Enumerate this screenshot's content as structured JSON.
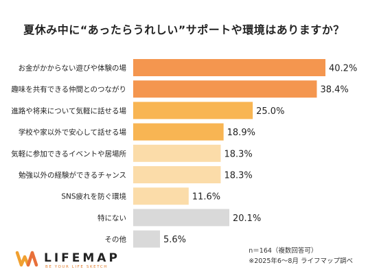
{
  "chart_data": {
    "type": "bar",
    "orientation": "horizontal",
    "title": "夏休み中に“あったらうれしい”サポートや環境はありますか？",
    "categories": [
      "お金がかからない遊びや体験の場",
      "趣味を共有できる仲間とのつながり",
      "進路や将来について気軽に話せる場",
      "学校や家以外で安心して話せる場",
      "気軽に参加できるイベントや居場所",
      "勉強以外の経験ができるチャンス",
      "SNS疲れを防ぐ環境",
      "特にない",
      "その他"
    ],
    "values": [
      40.2,
      38.4,
      25.0,
      18.9,
      18.3,
      18.3,
      11.6,
      20.1,
      5.6
    ],
    "value_labels": [
      "40.2%",
      "38.4%",
      "25.0%",
      "18.9%",
      "18.3%",
      "18.3%",
      "11.6%",
      "20.1%",
      "5.6%"
    ],
    "bar_colors": [
      "#f4964f",
      "#f4964f",
      "#f8b553",
      "#f8b553",
      "#fbdca9",
      "#fbdca9",
      "#fbdca9",
      "#d9d9d9",
      "#d9d9d9"
    ],
    "xlim": [
      0,
      40.2
    ],
    "grid": false,
    "legend": "none"
  },
  "footer": {
    "sample_note": "n＝164（複数回答可）",
    "survey_note": "※2025年6〜8月 ライフマップ調べ"
  },
  "logo": {
    "name": "LIFEMAP",
    "tagline": "BE YOUR LIFE SKETCH",
    "colors": [
      "#f0a030",
      "#e8703a"
    ]
  }
}
